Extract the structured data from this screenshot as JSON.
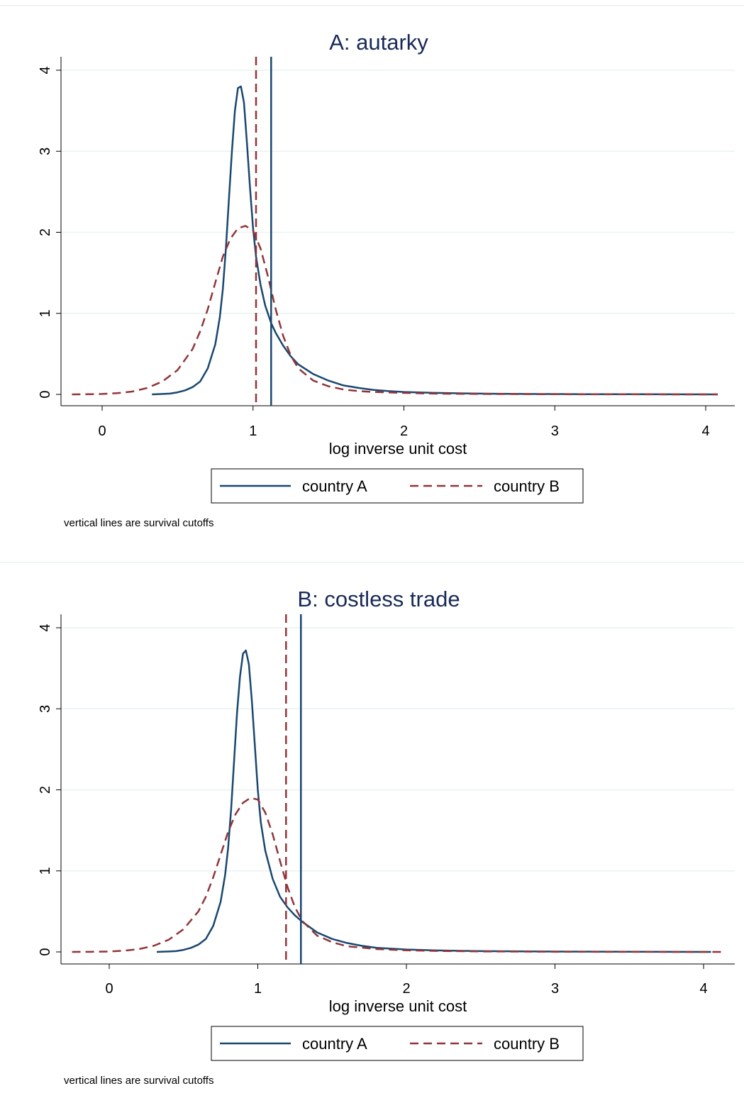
{
  "chart_data": [
    {
      "type": "line",
      "title": "A: autarky",
      "xlabel": "log inverse unit cost",
      "ylabel": "",
      "xlim": [
        -0.2,
        4.1
      ],
      "ylim": [
        0,
        4.1
      ],
      "xticks": [
        0,
        1,
        2,
        3,
        4
      ],
      "yticks": [
        0,
        1,
        2,
        3,
        4
      ],
      "grid": true,
      "legend_position": "bottom",
      "note": "vertical lines are survival cutoffs",
      "colors": {
        "country_a": "#1a476f",
        "country_b": "#90353b"
      },
      "series": [
        {
          "name": "country A",
          "style": "solid",
          "x": [
            0.33,
            0.4,
            0.45,
            0.5,
            0.55,
            0.6,
            0.65,
            0.7,
            0.75,
            0.78,
            0.8,
            0.82,
            0.84,
            0.86,
            0.88,
            0.9,
            0.92,
            0.94,
            0.96,
            0.98,
            1.0,
            1.02,
            1.05,
            1.08,
            1.12,
            1.15,
            1.2,
            1.25,
            1.3,
            1.4,
            1.5,
            1.6,
            1.7,
            1.8,
            1.9,
            2.0,
            2.2,
            2.4,
            2.6,
            2.8,
            3.0,
            3.2,
            3.5,
            3.8,
            4.08
          ],
          "y": [
            0.0,
            0.005,
            0.01,
            0.025,
            0.05,
            0.09,
            0.16,
            0.32,
            0.62,
            0.95,
            1.3,
            1.8,
            2.4,
            3.0,
            3.5,
            3.78,
            3.8,
            3.6,
            3.1,
            2.55,
            2.05,
            1.7,
            1.35,
            1.1,
            0.88,
            0.76,
            0.6,
            0.47,
            0.37,
            0.25,
            0.17,
            0.11,
            0.08,
            0.055,
            0.04,
            0.03,
            0.018,
            0.012,
            0.008,
            0.005,
            0.004,
            0.003,
            0.002,
            0.001,
            0.0
          ]
        },
        {
          "name": "country B",
          "style": "dashed",
          "x": [
            -0.2,
            -0.1,
            0.0,
            0.1,
            0.2,
            0.3,
            0.4,
            0.5,
            0.6,
            0.65,
            0.7,
            0.75,
            0.8,
            0.85,
            0.9,
            0.95,
            1.0,
            1.05,
            1.1,
            1.15,
            1.2,
            1.25,
            1.3,
            1.4,
            1.5,
            1.6,
            1.7,
            1.8,
            2.0,
            2.2,
            2.5,
            3.0,
            3.5,
            4.08
          ],
          "y": [
            0.0,
            0.002,
            0.005,
            0.015,
            0.035,
            0.08,
            0.16,
            0.3,
            0.56,
            0.78,
            1.05,
            1.38,
            1.7,
            1.92,
            2.05,
            2.08,
            2.02,
            1.8,
            1.45,
            1.05,
            0.72,
            0.48,
            0.32,
            0.17,
            0.1,
            0.06,
            0.04,
            0.03,
            0.018,
            0.01,
            0.005,
            0.002,
            0.001,
            0.0
          ]
        }
      ],
      "cutoffs": [
        {
          "name": "country A",
          "x": 1.12
        },
        {
          "name": "country B",
          "x": 1.02
        }
      ]
    },
    {
      "type": "line",
      "title": "B: costless trade",
      "xlabel": "log inverse unit cost",
      "ylabel": "",
      "xlim": [
        -0.3,
        4.15
      ],
      "ylim": [
        0,
        4.1
      ],
      "xticks": [
        0,
        1,
        2,
        3,
        4
      ],
      "yticks": [
        0,
        1,
        2,
        3,
        4
      ],
      "grid": true,
      "legend_position": "bottom",
      "note": "vertical lines are survival cutoffs",
      "colors": {
        "country_a": "#1a476f",
        "country_b": "#90353b"
      },
      "series": [
        {
          "name": "country A",
          "style": "solid",
          "x": [
            0.32,
            0.4,
            0.45,
            0.5,
            0.55,
            0.6,
            0.65,
            0.7,
            0.75,
            0.78,
            0.8,
            0.82,
            0.84,
            0.86,
            0.88,
            0.9,
            0.92,
            0.94,
            0.96,
            0.98,
            1.0,
            1.02,
            1.05,
            1.1,
            1.15,
            1.2,
            1.25,
            1.3,
            1.4,
            1.5,
            1.6,
            1.7,
            1.8,
            2.0,
            2.2,
            2.5,
            3.0,
            3.5,
            4.05
          ],
          "y": [
            0.0,
            0.005,
            0.01,
            0.025,
            0.05,
            0.09,
            0.16,
            0.32,
            0.62,
            0.95,
            1.28,
            1.75,
            2.35,
            2.95,
            3.4,
            3.68,
            3.72,
            3.55,
            3.1,
            2.55,
            2.0,
            1.6,
            1.25,
            0.9,
            0.68,
            0.55,
            0.45,
            0.37,
            0.24,
            0.16,
            0.11,
            0.075,
            0.05,
            0.03,
            0.018,
            0.01,
            0.004,
            0.002,
            0.0
          ]
        },
        {
          "name": "country B",
          "style": "dashed",
          "x": [
            -0.25,
            -0.1,
            0.0,
            0.1,
            0.2,
            0.3,
            0.4,
            0.5,
            0.6,
            0.65,
            0.7,
            0.75,
            0.8,
            0.85,
            0.9,
            0.95,
            1.0,
            1.05,
            1.1,
            1.15,
            1.2,
            1.25,
            1.3,
            1.4,
            1.5,
            1.6,
            1.8,
            2.0,
            2.2,
            2.5,
            3.0,
            3.5,
            4.15
          ],
          "y": [
            0.0,
            0.002,
            0.005,
            0.015,
            0.035,
            0.075,
            0.15,
            0.28,
            0.5,
            0.68,
            0.92,
            1.2,
            1.48,
            1.7,
            1.84,
            1.9,
            1.88,
            1.72,
            1.45,
            1.12,
            0.8,
            0.55,
            0.38,
            0.2,
            0.12,
            0.07,
            0.035,
            0.02,
            0.012,
            0.006,
            0.003,
            0.001,
            0.0
          ]
        }
      ],
      "cutoffs": [
        {
          "name": "country A",
          "x": 1.29
        },
        {
          "name": "country B",
          "x": 1.19
        }
      ]
    }
  ]
}
